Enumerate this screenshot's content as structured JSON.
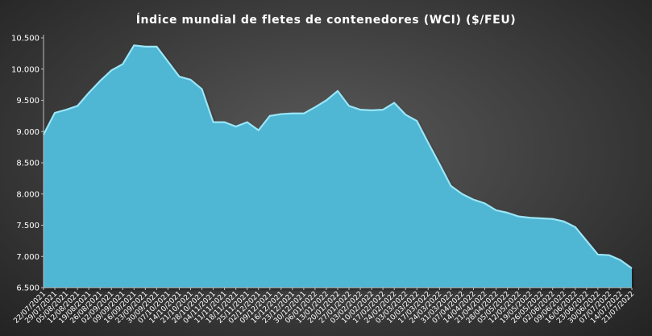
{
  "chart_data": {
    "type": "area",
    "title": "Índice mundial de fletes de contenedores (WCI) ($/FEU)",
    "xlabel": "",
    "ylabel": "",
    "ylim": [
      6500,
      10500
    ],
    "yticks": [
      6500,
      7000,
      7500,
      8000,
      8500,
      9000,
      9500,
      10000,
      10500
    ],
    "ytick_labels": [
      "6.500",
      "7.000",
      "7.500",
      "8.000",
      "8.500",
      "9.000",
      "9.500",
      "10.000",
      "10.500"
    ],
    "grid": false,
    "legend": "none",
    "fill_color": "#4fb6d4",
    "edge_color": "#9ae6f7",
    "categories": [
      "22/07/2021",
      "29/07/2021",
      "05/08/2021",
      "12/08/2021",
      "19/08/2021",
      "26/08/2021",
      "02/09/2021",
      "09/09/2021",
      "16/09/2021",
      "23/09/2021",
      "30/09/2021",
      "07/10/2021",
      "14/10/2021",
      "21/10/2021",
      "28/10/2021",
      "04/11/2021",
      "11/11/2021",
      "18/11/2021",
      "25/11/2021",
      "02/12/2021",
      "09/12/2021",
      "16/12/2021",
      "23/12/2021",
      "30/12/2021",
      "06/01/2022",
      "13/01/2022",
      "20/01/2022",
      "27/01/2022",
      "03/02/2022",
      "10/02/2022",
      "17/02/2022",
      "24/02/2022",
      "03/03/2022",
      "10/03/2022",
      "17/03/2022",
      "24/03/2022",
      "31/03/2022",
      "07/04/2022",
      "14/04/2022",
      "21/04/2022",
      "28/04/2022",
      "05/05/2022",
      "12/05/2022",
      "19/05/2022",
      "26/05/2022",
      "02/06/2022",
      "09/06/2022",
      "16/06/2022",
      "23/06/2022",
      "30/06/2022",
      "07/07/2022",
      "14/07/2022",
      "21/07/2022"
    ],
    "values": [
      8950,
      9300,
      9350,
      9410,
      9620,
      9810,
      9980,
      10080,
      10380,
      10360,
      10360,
      10120,
      9880,
      9830,
      9680,
      9150,
      9150,
      9080,
      9150,
      9020,
      9250,
      9280,
      9290,
      9290,
      9390,
      9500,
      9650,
      9410,
      9350,
      9340,
      9350,
      9460,
      9270,
      9170,
      8820,
      8480,
      8130,
      8000,
      7910,
      7850,
      7740,
      7700,
      7640,
      7620,
      7610,
      7600,
      7560,
      7470,
      7250,
      7030,
      7020,
      6940,
      6810
    ]
  }
}
